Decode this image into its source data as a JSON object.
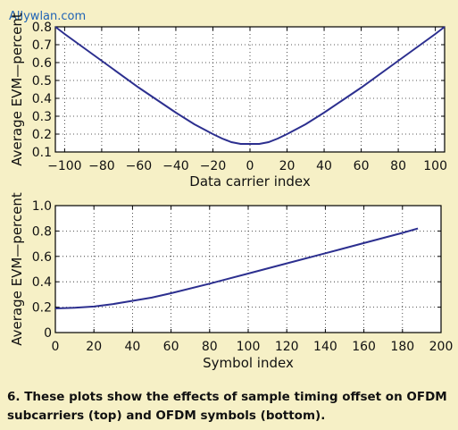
{
  "watermark": "Allywlan.com",
  "caption": "6. These plots show the effects of sample timing offset on OFDM subcarriers (top) and OFDM symbols (bottom).",
  "colors": {
    "background": "#f6f0c6",
    "plot_bg": "#ffffff",
    "line": "#2c2f8f"
  },
  "chart_data": [
    {
      "type": "line",
      "xlabel": "Data carrier index",
      "ylabel": "Average EVM—percent",
      "xlim": [
        -105,
        105
      ],
      "ylim": [
        0.1,
        0.8
      ],
      "xticks": [
        -100,
        -80,
        -60,
        -40,
        -20,
        0,
        20,
        40,
        60,
        80,
        100
      ],
      "xtick_labels": [
        "−100",
        "−80",
        "−60",
        "−40",
        "−20",
        "0",
        "20",
        "40",
        "60",
        "80",
        "100"
      ],
      "yticks": [
        0.1,
        0.2,
        0.3,
        0.4,
        0.5,
        0.6,
        0.7,
        0.8
      ],
      "ytick_labels": [
        "0.1",
        "0.2",
        "0.3",
        "0.4",
        "0.5",
        "0.6",
        "0.7",
        "0.8"
      ],
      "grid": true,
      "series": [
        {
          "x": [
            -105,
            -100,
            -80,
            -60,
            -40,
            -30,
            -20,
            -15,
            -10,
            -5,
            0,
            5,
            10,
            15,
            20,
            30,
            40,
            60,
            80,
            100,
            105
          ],
          "y": [
            0.8,
            0.76,
            0.61,
            0.46,
            0.32,
            0.255,
            0.2,
            0.175,
            0.155,
            0.145,
            0.145,
            0.145,
            0.155,
            0.175,
            0.2,
            0.255,
            0.32,
            0.46,
            0.61,
            0.76,
            0.8
          ]
        }
      ]
    },
    {
      "type": "line",
      "xlabel": "Symbol index",
      "ylabel": "Average EVM—percent",
      "xlim": [
        0,
        200
      ],
      "ylim": [
        0,
        1.0
      ],
      "xticks": [
        0,
        20,
        40,
        60,
        80,
        100,
        120,
        140,
        160,
        180,
        200
      ],
      "xtick_labels": [
        "0",
        "20",
        "40",
        "60",
        "80",
        "100",
        "120",
        "140",
        "160",
        "180",
        "200"
      ],
      "yticks": [
        0,
        0.2,
        0.4,
        0.6,
        0.8,
        1.0
      ],
      "ytick_labels": [
        "0",
        "0.2",
        "0.4",
        "0.6",
        "0.8",
        "1.0"
      ],
      "grid": true,
      "series": [
        {
          "x": [
            0,
            10,
            20,
            30,
            40,
            50,
            60,
            80,
            100,
            120,
            140,
            160,
            180,
            188
          ],
          "y": [
            0.19,
            0.195,
            0.205,
            0.225,
            0.25,
            0.275,
            0.31,
            0.385,
            0.465,
            0.545,
            0.625,
            0.705,
            0.785,
            0.82
          ]
        }
      ]
    }
  ]
}
